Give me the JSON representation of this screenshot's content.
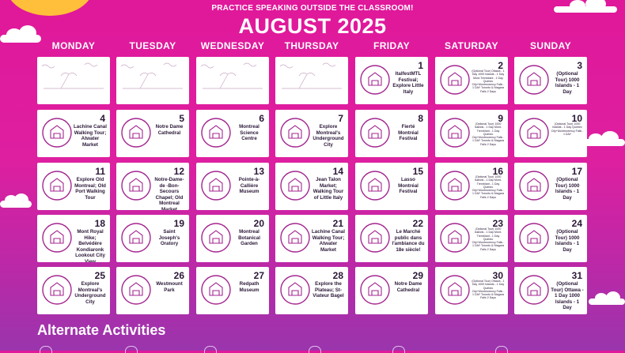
{
  "header": {
    "subtitle": "PRACTICE SPEAKING OUTSIDE THE CLASSROOM!",
    "month": "AUGUST 2025"
  },
  "weekdays": [
    "MONDAY",
    "TUESDAY",
    "WEDNESDAY",
    "THURSDAY",
    "FRIDAY",
    "SATURDAY",
    "SUNDAY"
  ],
  "weeks": [
    [
      {
        "blank": true
      },
      {
        "blank": true
      },
      {
        "blank": true
      },
      {
        "blank": true
      },
      {
        "day": "1",
        "text": "ItalfestMTL Festival; Explore Little Italy",
        "icon": "pasta-icon"
      },
      {
        "day": "2",
        "text": "(Optional Tour) Ottawa - 1 Day 1000 Islands - 1 Day Mont-Tremblant - 1 Day Quebec City+Montmorency Falls - 1 DAY Toronto & Niagara Falls 2 Days",
        "icon": "castle-icon",
        "small": true
      },
      {
        "day": "3",
        "text": "(Optional Tour) 1000 Islands - 1 Day",
        "icon": "islands-map-icon"
      }
    ],
    [
      {
        "day": "4",
        "text": "Lachine Canal Walking Tour; Atwater Market",
        "icon": "market-cart-icon"
      },
      {
        "day": "5",
        "text": "Notre Dame Cathedral",
        "icon": "cathedral-icon"
      },
      {
        "day": "6",
        "text": "Montreal Science Centre",
        "icon": "flask-icon"
      },
      {
        "day": "7",
        "text": "Explore Montreal's Underground City",
        "icon": "map-pin-icon"
      },
      {
        "day": "8",
        "text": "Fierté Montréal Festival",
        "icon": "rainbow-heart-icon"
      },
      {
        "day": "9",
        "text": "(Optional Tour) 1000 Islands - 1 Day Mont-Tremblant - 1 Day Quebec City+Montmorency Falls - 1 DAY Toronto & Niagara Falls 2 Days",
        "icon": "islands-map-icon",
        "small": true
      },
      {
        "day": "10",
        "text": "(Optional Tour) 1000 Islands - 1 Day Quebec City+Montmorency Falls - 1 DAY",
        "icon": "gondola-icon",
        "small": true
      }
    ],
    [
      {
        "day": "11",
        "text": "Explore Old Montreal; Old Port Walking Tour",
        "icon": "walking-dog-icon"
      },
      {
        "day": "12",
        "text": "Notre-Dame-de -Bon-Secours Chapel; Old Montreal Market",
        "icon": "chapel-icon"
      },
      {
        "day": "13",
        "text": "Pointe-à-Callière Museum",
        "icon": "museum-skyline-icon"
      },
      {
        "day": "14",
        "text": "Jean Talon Market; Walking Tour of Little Italy",
        "icon": "market-cart-icon"
      },
      {
        "day": "15",
        "text": "Lasso Montréal Festival",
        "icon": "rodeo-horse-icon"
      },
      {
        "day": "16",
        "text": "(Optional Tour) 1000 Islands - 1 Day Mont-Tremblant - 1 Day Quebec City+Montmorency Falls - 1 DAY Toronto & Niagara Falls 2 Days",
        "icon": "castle-icon",
        "small": true
      },
      {
        "day": "17",
        "text": "(Optional Tour) 1000 Islands - 1 Day",
        "icon": "islands-map-icon"
      }
    ],
    [
      {
        "day": "18",
        "text": "Mont Royal Hike; Belvédère Kondiaronk Lookout City View",
        "icon": "hiker-icon"
      },
      {
        "day": "19",
        "text": "Saint Joseph's Oratory",
        "icon": "oratory-icon"
      },
      {
        "day": "20",
        "text": "Montreal Botanical Garden",
        "icon": "greenhouse-icon"
      },
      {
        "day": "21",
        "text": "Lachine Canal Walking Tour; Atwater Market",
        "icon": "market-cart-icon"
      },
      {
        "day": "22",
        "text": "Le Marché public dans l'ambiance du 18e siècle!",
        "icon": "costume-person-icon"
      },
      {
        "day": "23",
        "text": "(Optional Tour) 1000 Islands - 1 Day Mont-Tremblant - 1 Day Quebec City+Montmorency Falls - 1 DAY Toronto & Niagara Falls 2 Days",
        "icon": "waterfall-icon",
        "small": true
      },
      {
        "day": "24",
        "text": "(Optional Tour) 1000 Islands - 1 Day",
        "icon": "islands-map-icon"
      }
    ],
    [
      {
        "day": "25",
        "text": "Explore Montreal's Underground City",
        "icon": "map-pin-icon"
      },
      {
        "day": "26",
        "text": "Westmount Park",
        "icon": "park-bench-icon"
      },
      {
        "day": "27",
        "text": "Redpath Museum",
        "icon": "museum-icon"
      },
      {
        "day": "28",
        "text": "Explore the Plateau; St-Viateur Bagel",
        "icon": "bagel-icon"
      },
      {
        "day": "29",
        "text": "Notre Dame Cathedral",
        "icon": "cathedral-icon"
      },
      {
        "day": "30",
        "text": "(Optional Tour) Ottawa - 1 Day 1000 Islands - 1 Day Quebec City+Montmorency Falls - 1 DAY Toronto & Niagara Falls 2 Days",
        "icon": "parliament-icon",
        "small": true
      },
      {
        "day": "31",
        "text": "(Optional Tour) Ottawa - 1 Day 1000 Islands - 1 Day",
        "icon": "parliament-icon"
      }
    ]
  ],
  "footer": {
    "alternate_title": "Alternate Activities"
  },
  "colors": {
    "background_top": "#e0189a",
    "background_bottom": "#9a35ad",
    "icon_stroke": "#a3268f",
    "sun": "#ffbf3a"
  }
}
